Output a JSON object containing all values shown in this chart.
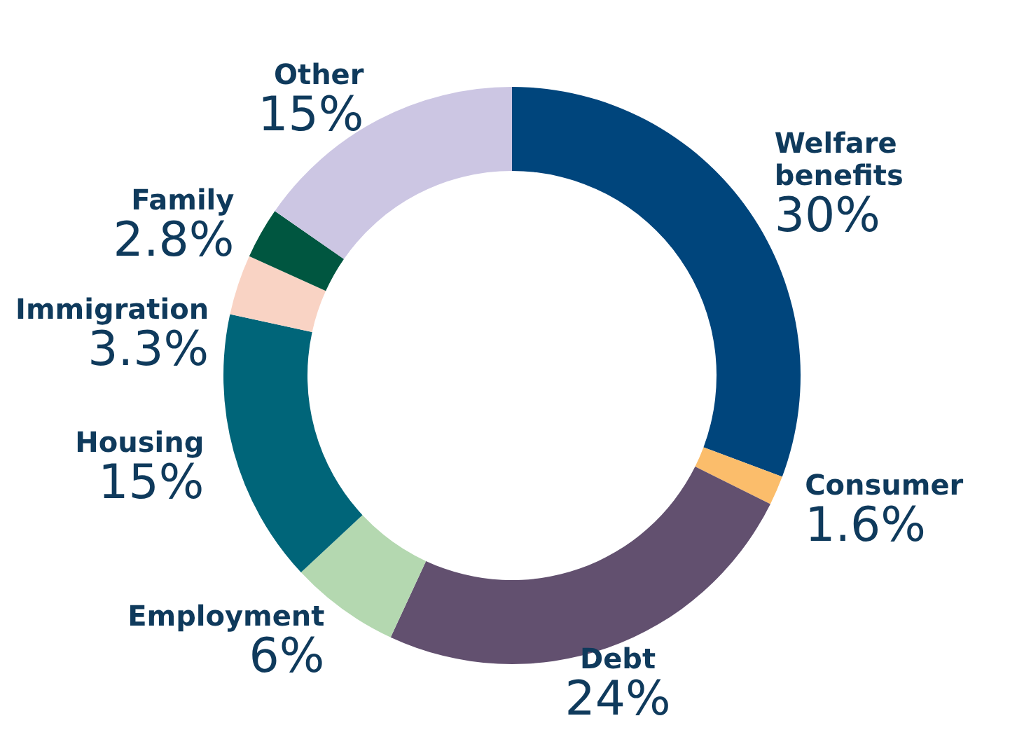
{
  "chart_data": {
    "type": "donut",
    "categories": [
      "Welfare benefits",
      "Consumer",
      "Debt",
      "Employment",
      "Housing",
      "Immigration",
      "Family",
      "Other"
    ],
    "values": [
      30,
      1.6,
      24,
      6,
      15,
      3.3,
      2.8,
      15
    ],
    "colors": [
      "#00457c",
      "#fbbd6b",
      "#62506f",
      "#b4d8b0",
      "#006579",
      "#f9d3c4",
      "#005640",
      "#ccc6e3"
    ],
    "value_labels": [
      "30%",
      "1.6%",
      "24%",
      "6%",
      "15%",
      "3.3%",
      "2.8%",
      "15%"
    ],
    "legend": false
  }
}
